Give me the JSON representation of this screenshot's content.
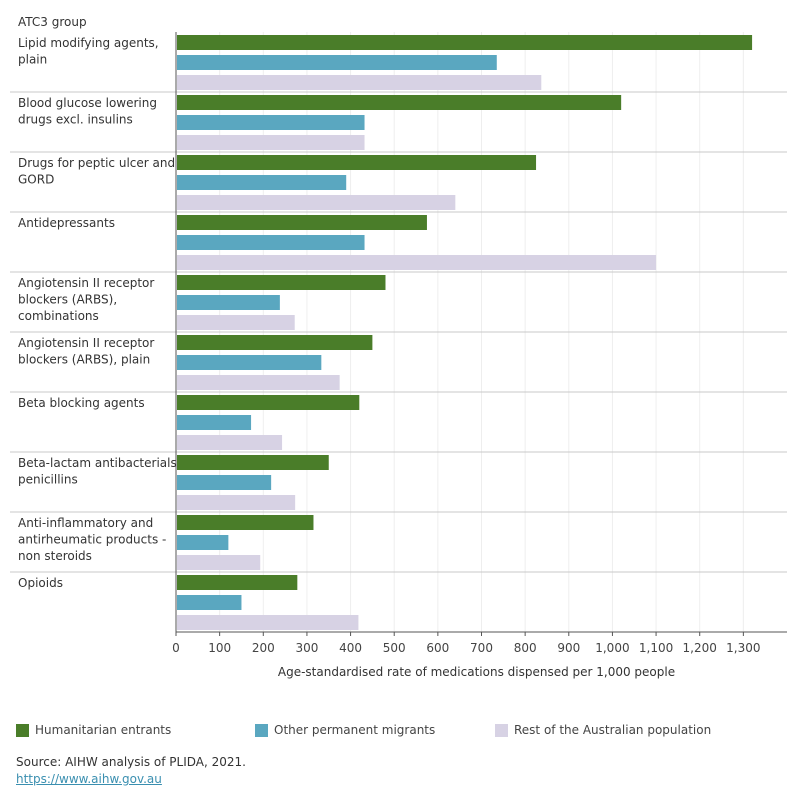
{
  "chart_data": {
    "type": "bar",
    "orientation": "horizontal",
    "title": "",
    "category_axis_label": "ATC3 group",
    "xlabel": "Age-standardised rate of medications dispensed per 1,000 people",
    "xlim": [
      0,
      1400
    ],
    "xticks": [
      0,
      100,
      200,
      300,
      400,
      500,
      600,
      700,
      800,
      900,
      1000,
      1100,
      1200,
      1300
    ],
    "xtick_labels": [
      "0",
      "100",
      "200",
      "300",
      "400",
      "500",
      "600",
      "700",
      "800",
      "900",
      "1,000",
      "1,100",
      "1,200",
      "1,300"
    ],
    "grid": true,
    "legend_position": "bottom",
    "categories": [
      [
        "Lipid modifying agents,",
        "plain"
      ],
      [
        "Blood glucose lowering",
        "drugs excl. insulins"
      ],
      [
        "Drugs for peptic ulcer and",
        "GORD"
      ],
      [
        "Antidepressants"
      ],
      [
        "Angiotensin II receptor",
        "blockers (ARBS),",
        "combinations"
      ],
      [
        "Angiotensin II receptor",
        "blockers (ARBS), plain"
      ],
      [
        "Beta blocking agents"
      ],
      [
        "Beta-lactam antibacterials,",
        "penicillins"
      ],
      [
        "Anti-inflammatory and",
        "antirheumatic products -",
        "non steroids"
      ],
      [
        "Opioids"
      ]
    ],
    "series": [
      {
        "name": "Humanitarian entrants",
        "color": "#4a7d29",
        "values": [
          1320,
          1020,
          825,
          575,
          480,
          450,
          420,
          350,
          315,
          278
        ]
      },
      {
        "name": "Other permanent migrants",
        "color": "#5aa7c0",
        "values": [
          735,
          432,
          390,
          432,
          238,
          333,
          172,
          218,
          120,
          150
        ]
      },
      {
        "name": "Rest of the Australian population",
        "color": "#d7d2e4",
        "values": [
          837,
          432,
          640,
          1100,
          272,
          375,
          243,
          273,
          193,
          418
        ]
      }
    ]
  },
  "footer": {
    "source": "Source: AIHW analysis of PLIDA, 2021.",
    "link": "https://www.aihw.gov.au"
  }
}
